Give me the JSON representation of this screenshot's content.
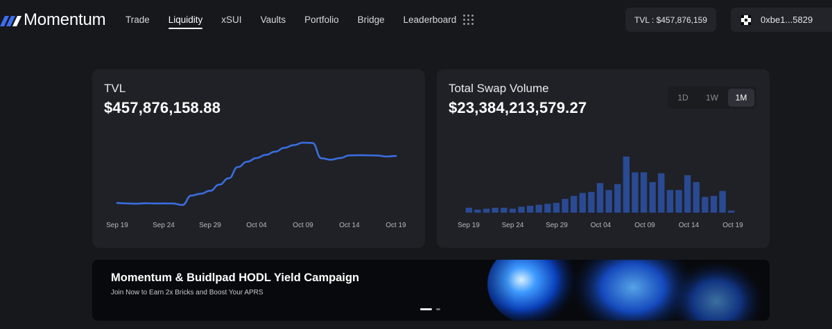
{
  "header": {
    "brand": "Momentum",
    "nav": [
      "Trade",
      "Liquidity",
      "xSUI",
      "Vaults",
      "Portfolio",
      "Bridge",
      "Leaderboard"
    ],
    "active_nav": "Liquidity",
    "tvl_pill": "TVL : $457,876,159",
    "wallet": "0xbe1...5829",
    "icons": {
      "logo": "momentum-logo",
      "apps": "grid-dots-icon",
      "wallet": "wallet-qr-icon"
    }
  },
  "tvl_card": {
    "label": "TVL",
    "value": "$457,876,158.88"
  },
  "volume_card": {
    "label": "Total Swap Volume",
    "value": "$23,384,213,579.27",
    "ranges": [
      "1D",
      "1W",
      "1M"
    ],
    "active_range": "1M"
  },
  "banner": {
    "title": "Momentum & Buidlpad HODL Yield Campaign",
    "subtitle": "Join Now to Earn 2x Bricks and Boost Your APRS"
  },
  "colors": {
    "accent_line": "#3a6ee0",
    "bar": "#2a4a94",
    "background": "#17181c",
    "card": "#202126"
  },
  "chart_data": [
    {
      "type": "line",
      "series": [
        {
          "values": [
            455,
            450,
            447,
            452,
            449,
            450,
            449,
            433,
            534,
            554,
            585,
            651,
            718,
            839,
            896,
            935,
            969,
            1003,
            1044,
            1073,
            1099,
            1096,
            932,
            917,
            935,
            963,
            965,
            964,
            962,
            951,
            957
          ]
        }
      ],
      "x_ticks": [
        "Sep 19",
        "Sep 24",
        "Sep 29",
        "Oct 04",
        "Oct 09",
        "Oct 14",
        "Oct 19"
      ],
      "grid": false
    },
    {
      "type": "bar",
      "series": [
        {
          "values": [
            0.5,
            0.3,
            0.4,
            0.5,
            0.5,
            0.4,
            0.6,
            0.7,
            0.8,
            0.9,
            1.0,
            1.4,
            1.7,
            2.0,
            2.1,
            3.0,
            2.3,
            2.9,
            5.7,
            4.1,
            4.1,
            3.1,
            4.0,
            2.3,
            2.3,
            3.8,
            3.1,
            1.6,
            1.7,
            2.2,
            0.2
          ]
        }
      ],
      "x_ticks": [
        "Sep 19",
        "Sep 24",
        "Sep 29",
        "Oct 04",
        "Oct 09",
        "Oct 14",
        "Oct 19"
      ],
      "grid": false
    }
  ]
}
